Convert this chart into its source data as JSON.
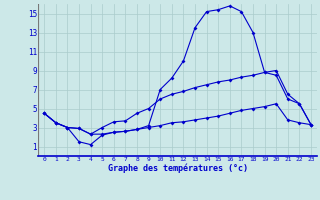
{
  "title": "Graphe des températures (°c)",
  "bg_color": "#cce8e8",
  "grid_color": "#aacccc",
  "line_color": "#0000cc",
  "xlim": [
    -0.5,
    23.5
  ],
  "ylim": [
    0,
    16
  ],
  "xticks": [
    0,
    1,
    2,
    3,
    4,
    5,
    6,
    7,
    8,
    9,
    10,
    11,
    12,
    13,
    14,
    15,
    16,
    17,
    18,
    19,
    20,
    21,
    22,
    23
  ],
  "yticks": [
    1,
    3,
    5,
    7,
    9,
    11,
    13,
    15
  ],
  "line1_x": [
    0,
    1,
    2,
    3,
    4,
    5,
    6,
    7,
    8,
    9,
    10,
    11,
    12,
    13,
    14,
    15,
    16,
    17,
    18,
    19,
    20,
    21,
    22,
    23
  ],
  "line1_y": [
    4.5,
    3.5,
    3.0,
    1.5,
    1.2,
    2.2,
    2.5,
    2.6,
    2.8,
    3.2,
    7.0,
    8.2,
    10.0,
    13.5,
    15.2,
    15.4,
    15.8,
    15.2,
    13.0,
    8.8,
    8.5,
    6.0,
    5.5,
    3.3
  ],
  "line2_x": [
    0,
    1,
    2,
    3,
    4,
    5,
    6,
    7,
    8,
    9,
    10,
    11,
    12,
    13,
    14,
    15,
    16,
    17,
    18,
    19,
    20,
    21,
    22,
    23
  ],
  "line2_y": [
    4.5,
    3.5,
    3.0,
    2.9,
    2.3,
    3.0,
    3.6,
    3.7,
    4.5,
    5.0,
    6.0,
    6.5,
    6.8,
    7.2,
    7.5,
    7.8,
    8.0,
    8.3,
    8.5,
    8.8,
    9.0,
    6.5,
    5.5,
    3.3
  ],
  "line3_x": [
    0,
    1,
    2,
    3,
    4,
    5,
    6,
    7,
    8,
    9,
    10,
    11,
    12,
    13,
    14,
    15,
    16,
    17,
    18,
    19,
    20,
    21,
    22,
    23
  ],
  "line3_y": [
    4.5,
    3.5,
    3.0,
    2.9,
    2.3,
    2.3,
    2.5,
    2.6,
    2.8,
    3.0,
    3.2,
    3.5,
    3.6,
    3.8,
    4.0,
    4.2,
    4.5,
    4.8,
    5.0,
    5.2,
    5.5,
    3.8,
    3.5,
    3.3
  ]
}
